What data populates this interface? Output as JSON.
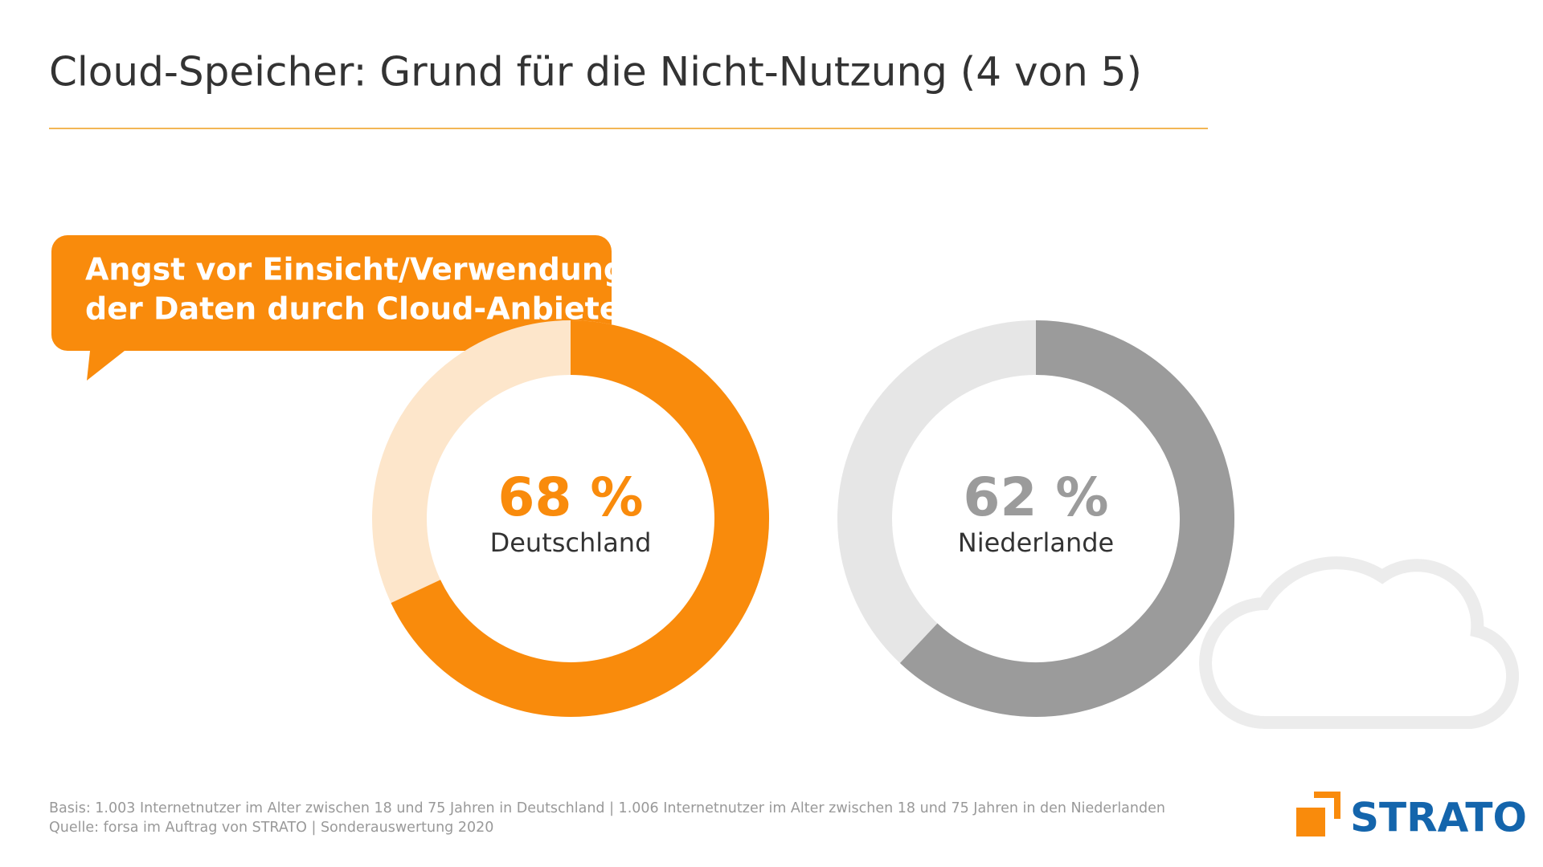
{
  "title": "Cloud-Speicher: Grund für die Nicht-Nutzung (4 von 5)",
  "callout": [
    "Angst vor Einsicht/Verwendung",
    "der Daten durch Cloud-Anbieter"
  ],
  "footnotes": [
    "Basis: 1.003 Internetnutzer im Alter zwischen 18 und 75 Jahren in Deutschland | 1.006 Internetnutzer im Alter zwischen 18 und 75 Jahren in den Niederlanden",
    "Quelle: forsa im Auftrag von STRATO | Sonderauswertung 2020"
  ],
  "logo": "STRATO",
  "chart_data": [
    {
      "type": "donut",
      "categories": [
        "Deutschland"
      ],
      "values": [
        68
      ],
      "value_labels": [
        "68 %"
      ],
      "color": "#f98b0c",
      "track_color": "#fde6cb"
    },
    {
      "type": "donut",
      "categories": [
        "Niederlande"
      ],
      "values": [
        62
      ],
      "value_labels": [
        "62 %"
      ],
      "color": "#9b9b9b",
      "track_color": "#e6e6e6"
    }
  ]
}
